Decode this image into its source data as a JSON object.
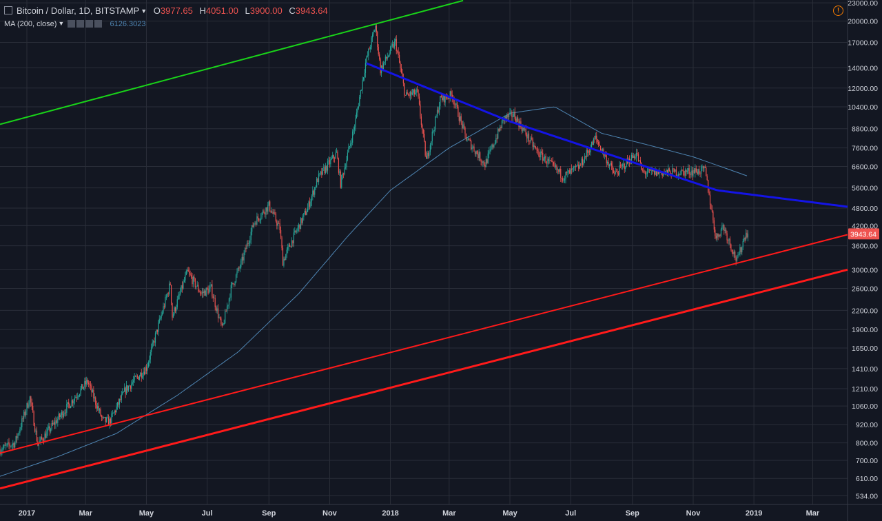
{
  "header": {
    "symbol": "Bitcoin / Dollar, 1D, BITSTAMP",
    "open_label": "O",
    "open": "3977.65",
    "high_label": "H",
    "high": "4051.00",
    "low_label": "L",
    "low": "3900.00",
    "close_label": "C",
    "close": "3943.64",
    "ma_label": "MA (200, close)",
    "ma_value": "6126.3023"
  },
  "colors": {
    "background": "#131722",
    "grid": "#2a2e39",
    "text": "#d1d4dc",
    "up": "#26a69a",
    "down": "#ef5350",
    "ma": "#4f86b4",
    "green_trendline": "#19d319",
    "blue_trendline": "#1414e6",
    "red_trendline": "#ff1a1a",
    "last_price_badge": "#ef5350"
  },
  "icons": {
    "alert": "alert-circle-icon"
  },
  "chart_data": {
    "type": "candlestick",
    "title": "Bitcoin / Dollar, 1D, BITSTAMP",
    "y_scale": "log",
    "ylim": [
      500,
      23500
    ],
    "y_ticks": [
      "23000.00",
      "20000.00",
      "17000.00",
      "14000.00",
      "12000.00",
      "10400.00",
      "8800.00",
      "7600.00",
      "6600.00",
      "5600.00",
      "4800.00",
      "4200.00",
      "3600.00",
      "3000.00",
      "2600.00",
      "2200.00",
      "1900.00",
      "1650.00",
      "1410.00",
      "1210.00",
      "1060.00",
      "920.00",
      "800.00",
      "700.00",
      "610.00",
      "534.00"
    ],
    "x_range": [
      "2016-12-05",
      "2019-04-05"
    ],
    "x_ticks": [
      {
        "date": "2017-01-01",
        "label": "2017"
      },
      {
        "date": "2017-03-01",
        "label": "Mar"
      },
      {
        "date": "2017-05-01",
        "label": "May"
      },
      {
        "date": "2017-07-01",
        "label": "Jul"
      },
      {
        "date": "2017-09-01",
        "label": "Sep"
      },
      {
        "date": "2017-11-01",
        "label": "Nov"
      },
      {
        "date": "2018-01-01",
        "label": "2018"
      },
      {
        "date": "2018-03-01",
        "label": "Mar"
      },
      {
        "date": "2018-05-01",
        "label": "May"
      },
      {
        "date": "2018-07-01",
        "label": "Jul"
      },
      {
        "date": "2018-09-01",
        "label": "Sep"
      },
      {
        "date": "2018-11-01",
        "label": "Nov"
      },
      {
        "date": "2019-01-01",
        "label": "2019"
      },
      {
        "date": "2019-03-01",
        "label": "Mar"
      }
    ],
    "price_path": [
      [
        "2016-12-05",
        760
      ],
      [
        "2016-12-20",
        800
      ],
      [
        "2017-01-04",
        1130
      ],
      [
        "2017-01-12",
        790
      ],
      [
        "2017-02-01",
        960
      ],
      [
        "2017-02-24",
        1200
      ],
      [
        "2017-03-03",
        1280
      ],
      [
        "2017-03-18",
        950
      ],
      [
        "2017-03-25",
        940
      ],
      [
        "2017-04-10",
        1200
      ],
      [
        "2017-05-01",
        1420
      ],
      [
        "2017-05-25",
        2700
      ],
      [
        "2017-05-27",
        2100
      ],
      [
        "2017-06-11",
        2950
      ],
      [
        "2017-06-25",
        2500
      ],
      [
        "2017-07-05",
        2600
      ],
      [
        "2017-07-16",
        1900
      ],
      [
        "2017-07-25",
        2600
      ],
      [
        "2017-08-05",
        3200
      ],
      [
        "2017-08-17",
        4300
      ],
      [
        "2017-09-01",
        4900
      ],
      [
        "2017-09-12",
        4100
      ],
      [
        "2017-09-15",
        3200
      ],
      [
        "2017-09-25",
        3800
      ],
      [
        "2017-10-10",
        4800
      ],
      [
        "2017-10-20",
        6000
      ],
      [
        "2017-11-08",
        7300
      ],
      [
        "2017-11-12",
        5800
      ],
      [
        "2017-11-26",
        9000
      ],
      [
        "2017-12-07",
        14500
      ],
      [
        "2017-12-17",
        19300
      ],
      [
        "2017-12-22",
        13800
      ],
      [
        "2018-01-06",
        17100
      ],
      [
        "2018-01-16",
        11300
      ],
      [
        "2018-01-28",
        11600
      ],
      [
        "2018-02-06",
        6900
      ],
      [
        "2018-02-20",
        11000
      ],
      [
        "2018-03-04",
        11400
      ],
      [
        "2018-03-18",
        8200
      ],
      [
        "2018-04-06",
        6700
      ],
      [
        "2018-04-25",
        9500
      ],
      [
        "2018-05-05",
        9800
      ],
      [
        "2018-05-28",
        7400
      ],
      [
        "2018-06-24",
        6100
      ],
      [
        "2018-07-10",
        6600
      ],
      [
        "2018-07-26",
        8200
      ],
      [
        "2018-08-14",
        6200
      ],
      [
        "2018-09-05",
        7300
      ],
      [
        "2018-09-11",
        6300
      ],
      [
        "2018-10-12",
        6300
      ],
      [
        "2018-11-13",
        6400
      ],
      [
        "2018-11-24",
        3800
      ],
      [
        "2018-12-01",
        4200
      ],
      [
        "2018-12-15",
        3200
      ],
      [
        "2018-12-24",
        4000
      ],
      [
        "2018-12-26",
        3943.64
      ]
    ],
    "moving_average_200": {
      "name": "MA (200, close)",
      "points": [
        [
          "2016-12-05",
          620
        ],
        [
          "2017-02-01",
          720
        ],
        [
          "2017-04-01",
          860
        ],
        [
          "2017-06-01",
          1150
        ],
        [
          "2017-08-01",
          1600
        ],
        [
          "2017-10-01",
          2500
        ],
        [
          "2017-11-20",
          3900
        ],
        [
          "2018-01-01",
          5500
        ],
        [
          "2018-03-01",
          7600
        ],
        [
          "2018-05-01",
          9900
        ],
        [
          "2018-06-15",
          10400
        ],
        [
          "2018-08-01",
          8500
        ],
        [
          "2018-09-15",
          7800
        ],
        [
          "2018-11-01",
          7100
        ],
        [
          "2018-12-26",
          6126.3023
        ]
      ]
    },
    "trendlines": [
      {
        "color": "green",
        "width": 2,
        "points": [
          [
            "2016-12-05",
            9100
          ],
          [
            "2018-03-15",
            23400
          ]
        ]
      },
      {
        "color": "blue",
        "width": 3,
        "curve": "power",
        "points": [
          [
            "2017-12-08",
            14500
          ],
          [
            "2018-05-01",
            9300
          ],
          [
            "2018-11-25",
            5500
          ],
          [
            "2019-04-05",
            4850
          ]
        ]
      },
      {
        "color": "red",
        "width": 2,
        "points": [
          [
            "2016-12-05",
            740
          ],
          [
            "2019-04-05",
            3920
          ]
        ]
      },
      {
        "color": "red",
        "width": 3,
        "points": [
          [
            "2016-12-05",
            565
          ],
          [
            "2019-04-05",
            3000
          ]
        ]
      }
    ],
    "last_price": 3943.64
  }
}
